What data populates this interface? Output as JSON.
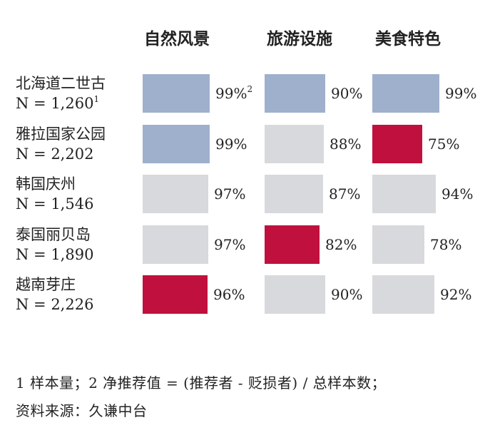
{
  "chart_data": {
    "type": "table",
    "columns": [
      "自然风景",
      "旅游设施",
      "美食特色"
    ],
    "rows": [
      {
        "name": "北海道二世古",
        "n": "N = 1,260",
        "n_sup": "1",
        "values": [
          99,
          90,
          99
        ],
        "labels": [
          "99%",
          "90%",
          "99%"
        ],
        "label_sups": [
          "2",
          "",
          ""
        ],
        "status": [
          "high",
          "high",
          "high"
        ]
      },
      {
        "name": "雅拉国家公园",
        "n": "N = 2,202",
        "values": [
          99,
          88,
          75
        ],
        "labels": [
          "99%",
          "88%",
          "75%"
        ],
        "status": [
          "high",
          "neutral",
          "low"
        ]
      },
      {
        "name": "韩国庆州",
        "n": "N = 1,546",
        "values": [
          97,
          87,
          94
        ],
        "labels": [
          "97%",
          "87%",
          "94%"
        ],
        "status": [
          "neutral",
          "neutral",
          "neutral"
        ]
      },
      {
        "name": "泰国丽贝岛",
        "n": "N = 1,890",
        "values": [
          97,
          82,
          78
        ],
        "labels": [
          "97%",
          "82%",
          "78%"
        ],
        "status": [
          "neutral",
          "low",
          "neutral"
        ]
      },
      {
        "name": "越南芽庄",
        "n": "N = 2,226",
        "values": [
          96,
          90,
          92
        ],
        "labels": [
          "96%",
          "90%",
          "92%"
        ],
        "status": [
          "low",
          "neutral",
          "neutral"
        ]
      }
    ]
  },
  "colors": {
    "high": "#9fb0cc",
    "neutral": "#d7d9dc",
    "low": "#c0103d"
  },
  "footnote": {
    "line1": "1 样本量；2 净推荐值 = (推荐者 - 贬损者) / 总样本数；",
    "line2": "资料来源：久谦中台"
  }
}
